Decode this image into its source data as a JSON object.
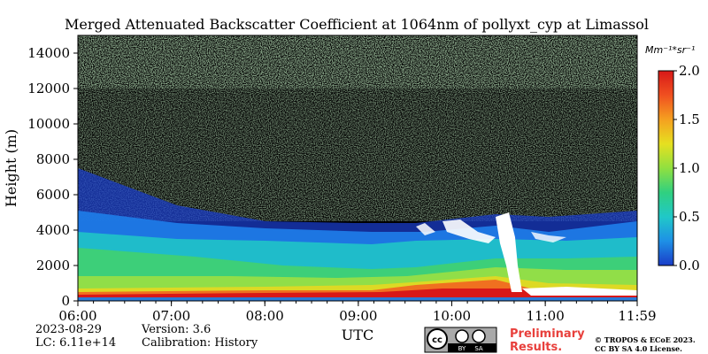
{
  "chart_data": {
    "type": "heatmap",
    "title": "Merged Attenuated Backscatter Coefficient at 1064nm of pollyxt_cyp at Limassol",
    "xlabel": "UTC",
    "ylabel": "Height (m)",
    "x_ticks": [
      "06:00",
      "07:00",
      "08:00",
      "09:00",
      "10:00",
      "11:00",
      "11:59"
    ],
    "x_range": [
      "06:00",
      "11:59"
    ],
    "y_ticks": [
      0,
      2000,
      4000,
      6000,
      8000,
      10000,
      12000,
      14000
    ],
    "ylim": [
      0,
      15000
    ],
    "colorbar": {
      "unit": "Mm⁻¹*sr⁻¹",
      "range": [
        0.0,
        2.0
      ],
      "ticks": [
        "0.0",
        "0.5",
        "1.0",
        "1.5",
        "2.0"
      ],
      "colormap": [
        "#1a3cc8",
        "#1e90e6",
        "#20c8c8",
        "#30d080",
        "#90e040",
        "#e6e020",
        "#f5a020",
        "#f05020",
        "#d81818"
      ]
    }
  },
  "footer": {
    "date": "2023-08-29",
    "lc": "LC: 6.11e+14",
    "version": "Version: 3.6",
    "calibration": "Calibration: History",
    "cc_badge": [
      "cc",
      "BY",
      "SA"
    ],
    "preliminary_line1": "Preliminary",
    "preliminary_line2": "Results.",
    "copyright_line1": "© TROPOS & ECoE 2023.",
    "copyright_line2": "CC BY SA 4.0 License."
  }
}
